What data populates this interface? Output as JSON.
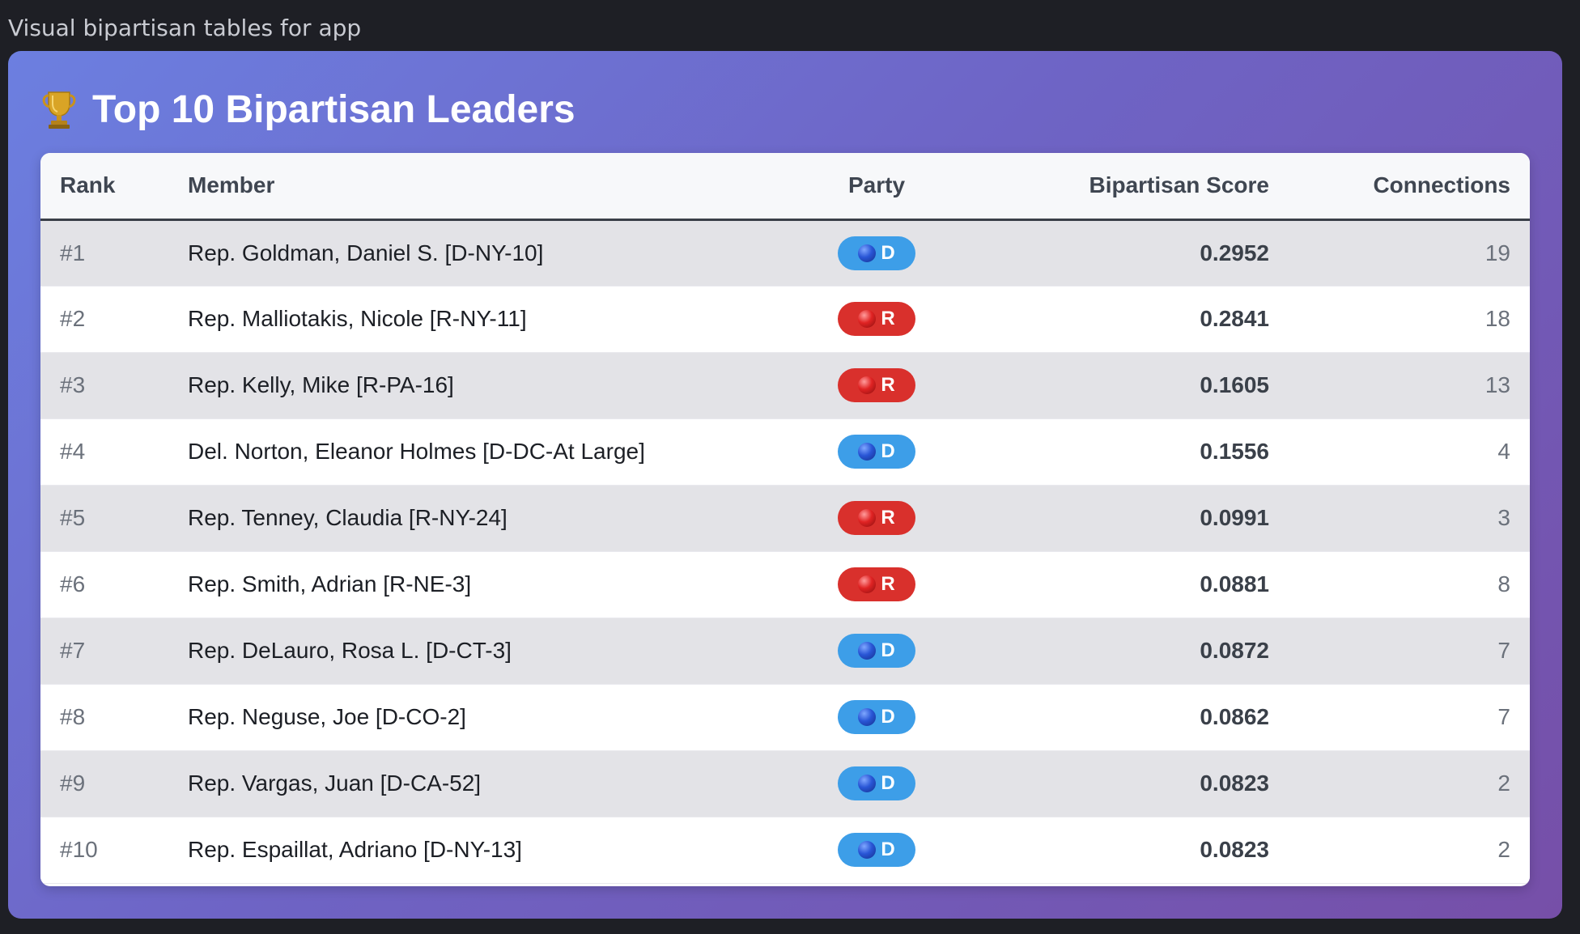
{
  "page": {
    "caption": "Visual bipartisan tables for app"
  },
  "card": {
    "title_icon": "trophy-icon",
    "title": "Top 10 Bipartisan Leaders"
  },
  "table": {
    "headers": {
      "rank": "Rank",
      "member": "Member",
      "party": "Party",
      "score": "Bipartisan Score",
      "connections": "Connections"
    },
    "rows": [
      {
        "rank": "#1",
        "member": "Rep. Goldman, Daniel S. [D-NY-10]",
        "party": "D",
        "score": "0.2952",
        "connections": "19"
      },
      {
        "rank": "#2",
        "member": "Rep. Malliotakis, Nicole [R-NY-11]",
        "party": "R",
        "score": "0.2841",
        "connections": "18"
      },
      {
        "rank": "#3",
        "member": "Rep. Kelly, Mike [R-PA-16]",
        "party": "R",
        "score": "0.1605",
        "connections": "13"
      },
      {
        "rank": "#4",
        "member": "Del. Norton, Eleanor Holmes [D-DC-At Large]",
        "party": "D",
        "score": "0.1556",
        "connections": "4"
      },
      {
        "rank": "#5",
        "member": "Rep. Tenney, Claudia [R-NY-24]",
        "party": "R",
        "score": "0.0991",
        "connections": "3"
      },
      {
        "rank": "#6",
        "member": "Rep. Smith, Adrian [R-NE-3]",
        "party": "R",
        "score": "0.0881",
        "connections": "8"
      },
      {
        "rank": "#7",
        "member": "Rep. DeLauro, Rosa L. [D-CT-3]",
        "party": "D",
        "score": "0.0872",
        "connections": "7"
      },
      {
        "rank": "#8",
        "member": "Rep. Neguse, Joe [D-CO-2]",
        "party": "D",
        "score": "0.0862",
        "connections": "7"
      },
      {
        "rank": "#9",
        "member": "Rep. Vargas, Juan [D-CA-52]",
        "party": "D",
        "score": "0.0823",
        "connections": "2"
      },
      {
        "rank": "#10",
        "member": "Rep. Espaillat, Adriano [D-NY-13]",
        "party": "D",
        "score": "0.0823",
        "connections": "2"
      }
    ]
  },
  "colors": {
    "democrat_badge": "#3d9ee8",
    "republican_badge": "#d9302c",
    "gradient_start": "#6c7fe0",
    "gradient_end": "#764fa8"
  }
}
